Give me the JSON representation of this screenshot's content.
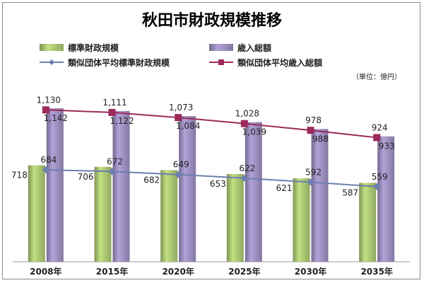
{
  "chart_data": {
    "type": "bar",
    "title": "秋田市財政規模推移",
    "unit": "（単位：億円）",
    "categories": [
      "2008年",
      "2015年",
      "2020年",
      "2025年",
      "2030年",
      "2035年"
    ],
    "series": [
      {
        "name": "標準財政規模",
        "kind": "bar",
        "color": "#a9c471",
        "values": [
          718,
          706,
          682,
          653,
          621,
          587
        ]
      },
      {
        "name": "歳入総額",
        "kind": "bar",
        "color": "#9b8dbd",
        "values": [
          1142,
          1122,
          1084,
          1039,
          988,
          933
        ]
      },
      {
        "name": "類似団体平均標準財政規模",
        "kind": "line",
        "color": "#6b7fb0",
        "marker": "diamond",
        "values": [
          684,
          672,
          649,
          622,
          592,
          559
        ]
      },
      {
        "name": "類似団体平均歳入総額",
        "kind": "line",
        "color": "#9c2a5a",
        "marker": "square",
        "values": [
          1130,
          1111,
          1073,
          1028,
          978,
          924
        ]
      }
    ],
    "ylim": [
      0,
      1400
    ],
    "grid": false,
    "legend_position": "top"
  }
}
